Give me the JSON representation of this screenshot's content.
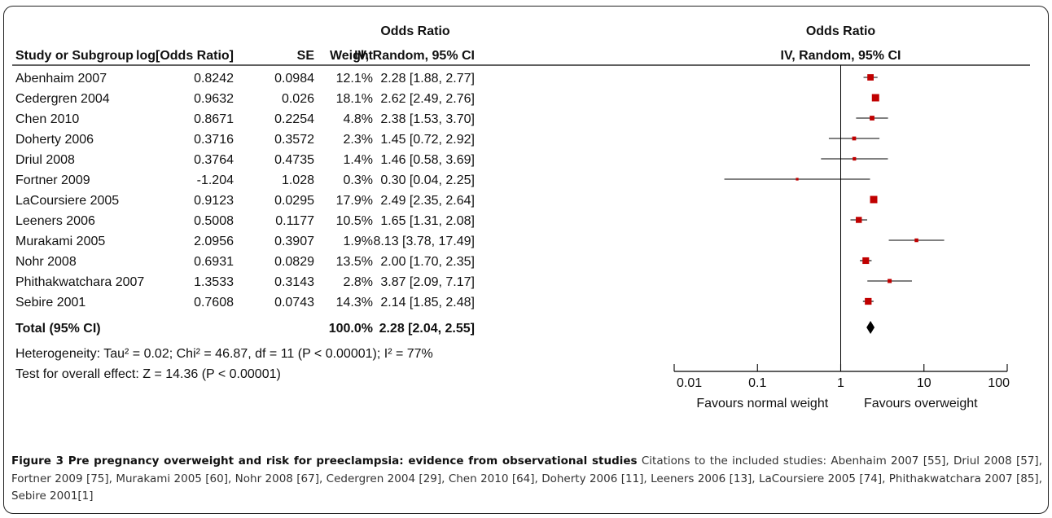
{
  "chart_data": {
    "type": "forest",
    "header": {
      "study": "Study or Subgroup",
      "log_or": "log[Odds Ratio]",
      "se": "SE",
      "weight": "Weight",
      "or_title": "Odds Ratio",
      "or_method": "IV, Random, 95% CI",
      "plot_title": "Odds Ratio",
      "plot_method": "IV, Random, 95% CI"
    },
    "studies": [
      {
        "name": "Abenhaim 2007",
        "log_or": "0.8242",
        "se": "0.0984",
        "weight": "12.1%",
        "or_text": "2.28 [1.88, 2.77]",
        "or": 2.28,
        "lo": 1.88,
        "hi": 2.77,
        "w": 12.1
      },
      {
        "name": "Cedergren 2004",
        "log_or": "0.9632",
        "se": "0.026",
        "weight": "18.1%",
        "or_text": "2.62 [2.49, 2.76]",
        "or": 2.62,
        "lo": 2.49,
        "hi": 2.76,
        "w": 18.1
      },
      {
        "name": "Chen 2010",
        "log_or": "0.8671",
        "se": "0.2254",
        "weight": "4.8%",
        "or_text": "2.38 [1.53, 3.70]",
        "or": 2.38,
        "lo": 1.53,
        "hi": 3.7,
        "w": 4.8
      },
      {
        "name": "Doherty 2006",
        "log_or": "0.3716",
        "se": "0.3572",
        "weight": "2.3%",
        "or_text": "1.45 [0.72, 2.92]",
        "or": 1.45,
        "lo": 0.72,
        "hi": 2.92,
        "w": 2.3
      },
      {
        "name": "Driul 2008",
        "log_or": "0.3764",
        "se": "0.4735",
        "weight": "1.4%",
        "or_text": "1.46 [0.58, 3.69]",
        "or": 1.46,
        "lo": 0.58,
        "hi": 3.69,
        "w": 1.4
      },
      {
        "name": "Fortner 2009",
        "log_or": "-1.204",
        "se": "1.028",
        "weight": "0.3%",
        "or_text": "0.30 [0.04, 2.25]",
        "or": 0.3,
        "lo": 0.04,
        "hi": 2.25,
        "w": 0.3
      },
      {
        "name": "LaCoursiere 2005",
        "log_or": "0.9123",
        "se": "0.0295",
        "weight": "17.9%",
        "or_text": "2.49 [2.35, 2.64]",
        "or": 2.49,
        "lo": 2.35,
        "hi": 2.64,
        "w": 17.9
      },
      {
        "name": "Leeners 2006",
        "log_or": "0.5008",
        "se": "0.1177",
        "weight": "10.5%",
        "or_text": "1.65 [1.31, 2.08]",
        "or": 1.65,
        "lo": 1.31,
        "hi": 2.08,
        "w": 10.5
      },
      {
        "name": "Murakami 2005",
        "log_or": "2.0956",
        "se": "0.3907",
        "weight": "1.9%",
        "or_text": "8.13 [3.78, 17.49]",
        "or": 8.13,
        "lo": 3.78,
        "hi": 17.49,
        "w": 1.9
      },
      {
        "name": "Nohr 2008",
        "log_or": "0.6931",
        "se": "0.0829",
        "weight": "13.5%",
        "or_text": "2.00 [1.70, 2.35]",
        "or": 2.0,
        "lo": 1.7,
        "hi": 2.35,
        "w": 13.5
      },
      {
        "name": "Phithakwatchara 2007",
        "log_or": "1.3533",
        "se": "0.3143",
        "weight": "2.8%",
        "or_text": "3.87 [2.09, 7.17]",
        "or": 3.87,
        "lo": 2.09,
        "hi": 7.17,
        "w": 2.8
      },
      {
        "name": "Sebire 2001",
        "log_or": "0.7608",
        "se": "0.0743",
        "weight": "14.3%",
        "or_text": "2.14 [1.85, 2.48]",
        "or": 2.14,
        "lo": 1.85,
        "hi": 2.48,
        "w": 14.3
      }
    ],
    "total": {
      "label": "Total (95% CI)",
      "weight": "100.0%",
      "or_text": "2.28 [2.04, 2.55]",
      "or": 2.28,
      "lo": 2.04,
      "hi": 2.55
    },
    "heterogeneity": "Heterogeneity: Tau² = 0.02; Chi² = 46.87, df = 11 (P < 0.00001); I² = 77%",
    "overall_effect": "Test for overall effect: Z = 14.36 (P < 0.00001)",
    "axis": {
      "scale": "log",
      "ticks": [
        0.01,
        0.1,
        1,
        10,
        100
      ],
      "tick_labels": [
        "0.01",
        "0.1",
        "1",
        "10",
        "100"
      ],
      "range": [
        0.01,
        100
      ],
      "reference": 1
    },
    "favours_left": "Favours normal weight",
    "favours_right": "Favours overweight",
    "marker_color": "#c00000"
  },
  "caption": {
    "label": "Figure 3 Pre pregnancy overweight and risk for preeclampsia: evidence from observational studies",
    "text": " Citations to the included studies: Abenhaim 2007 [55], Driul 2008 [57], Fortner 2009 [75], Murakami 2005 [60], Nohr 2008 [67], Cedergren 2004 [29], Chen 2010 [64], Doherty 2006 [11], Leeners 2006 [13], LaCoursiere 2005 [74], Phithakwatchara 2007 [85], Sebire 2001[1]"
  }
}
